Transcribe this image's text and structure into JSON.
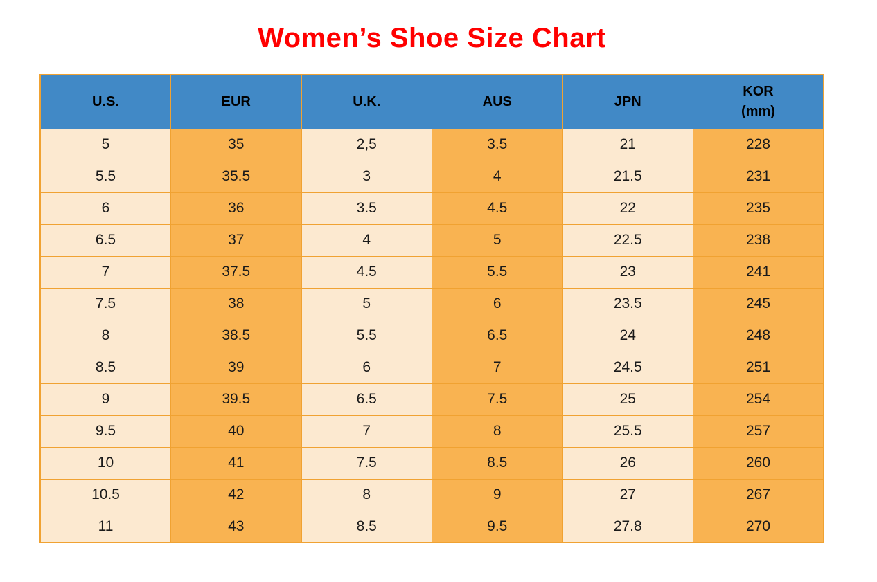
{
  "title": "Women’s Shoe Size Chart",
  "chart_data": {
    "type": "table",
    "title": "Women’s Shoe Size Chart",
    "columns": [
      "U.S.",
      "EUR",
      "U.K.",
      "AUS",
      "JPN",
      "KOR\n(mm)"
    ],
    "rows": [
      [
        "5",
        "35",
        "2,5",
        "3.5",
        "21",
        "228"
      ],
      [
        "5.5",
        "35.5",
        "3",
        "4",
        "21.5",
        "231"
      ],
      [
        "6",
        "36",
        "3.5",
        "4.5",
        "22",
        "235"
      ],
      [
        "6.5",
        "37",
        "4",
        "5",
        "22.5",
        "238"
      ],
      [
        "7",
        "37.5",
        "4.5",
        "5.5",
        "23",
        "241"
      ],
      [
        "7.5",
        "38",
        "5",
        "6",
        "23.5",
        "245"
      ],
      [
        "8",
        "38.5",
        "5.5",
        "6.5",
        "24",
        "248"
      ],
      [
        "8.5",
        "39",
        "6",
        "7",
        "24.5",
        "251"
      ],
      [
        "9",
        "39.5",
        "6.5",
        "7.5",
        "25",
        "254"
      ],
      [
        "9.5",
        "40",
        "7",
        "8",
        "25.5",
        "257"
      ],
      [
        "10",
        "41",
        "7.5",
        "8.5",
        "26",
        "260"
      ],
      [
        "10.5",
        "42",
        "8",
        "9",
        "27",
        "267"
      ],
      [
        "11",
        "43",
        "8.5",
        "9.5",
        "27.8",
        "270"
      ]
    ]
  },
  "colors": {
    "title_red": "#FF0000",
    "header_bg": "#4189C6",
    "cell_cream": "#FCE9D0",
    "cell_orange": "#F9B351",
    "border_orange": "#F0A232",
    "text": "#1A1A1A"
  }
}
